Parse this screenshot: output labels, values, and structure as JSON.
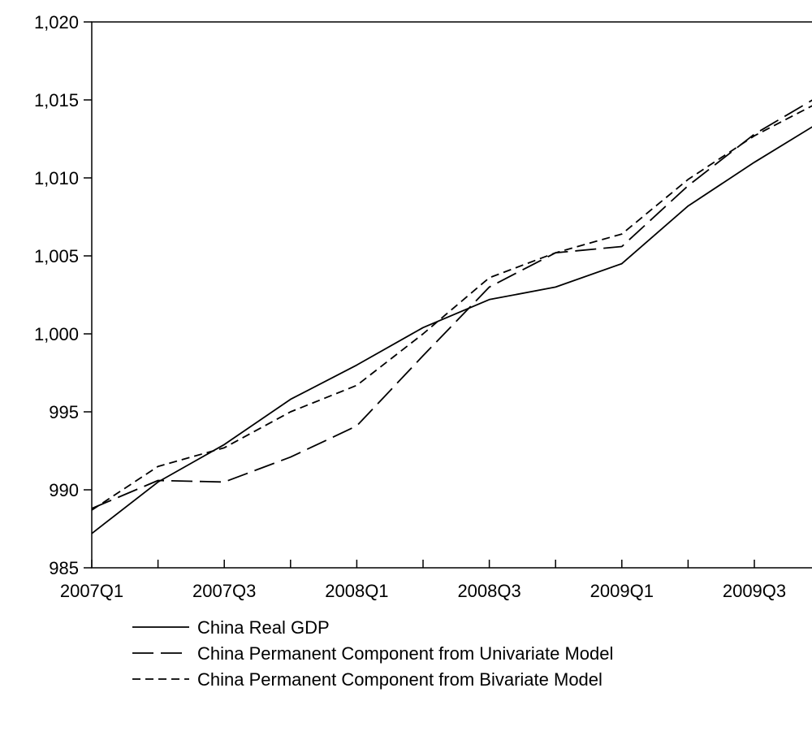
{
  "chart_data": {
    "type": "line",
    "title": "",
    "xlabel": "",
    "ylabel": "",
    "categories": [
      "2007Q1",
      "2007Q2",
      "2007Q3",
      "2007Q4",
      "2008Q1",
      "2008Q2",
      "2008Q3",
      "2008Q4",
      "2009Q1",
      "2009Q2",
      "2009Q3",
      "2009Q4"
    ],
    "x_tick_labels": [
      "2007Q1",
      "2007Q3",
      "2008Q1",
      "2008Q3",
      "2009Q1",
      "2009Q3"
    ],
    "ylim": [
      985,
      1020
    ],
    "y_ticks": [
      985,
      990,
      995,
      1000,
      1005,
      1010,
      1015,
      1020
    ],
    "y_tick_labels": [
      "985",
      "990",
      "995",
      "1,000",
      "1,005",
      "1,010",
      "1,015",
      "1,020"
    ],
    "grid": false,
    "legend_position": "bottom",
    "series": [
      {
        "name": "China Real GDP",
        "style": "solid",
        "color": "#000000",
        "values": [
          987.2,
          990.5,
          992.9,
          995.8,
          998.0,
          1000.4,
          1002.2,
          1003.0,
          1004.5,
          1008.2,
          1011.0,
          1013.6
        ]
      },
      {
        "name": "China Permanent Component from Univariate Model",
        "style": "long-dash",
        "color": "#000000",
        "values": [
          988.8,
          990.6,
          990.5,
          992.1,
          994.1,
          998.6,
          1003.0,
          1005.2,
          1005.6,
          1009.5,
          1012.8,
          1015.3
        ]
      },
      {
        "name": "China Permanent Component from Bivariate Model",
        "style": "short-dash",
        "color": "#000000",
        "values": [
          988.7,
          991.5,
          992.7,
          995.0,
          996.7,
          1000.0,
          1003.6,
          1005.2,
          1006.4,
          1009.9,
          1012.7,
          1014.9
        ]
      }
    ]
  }
}
